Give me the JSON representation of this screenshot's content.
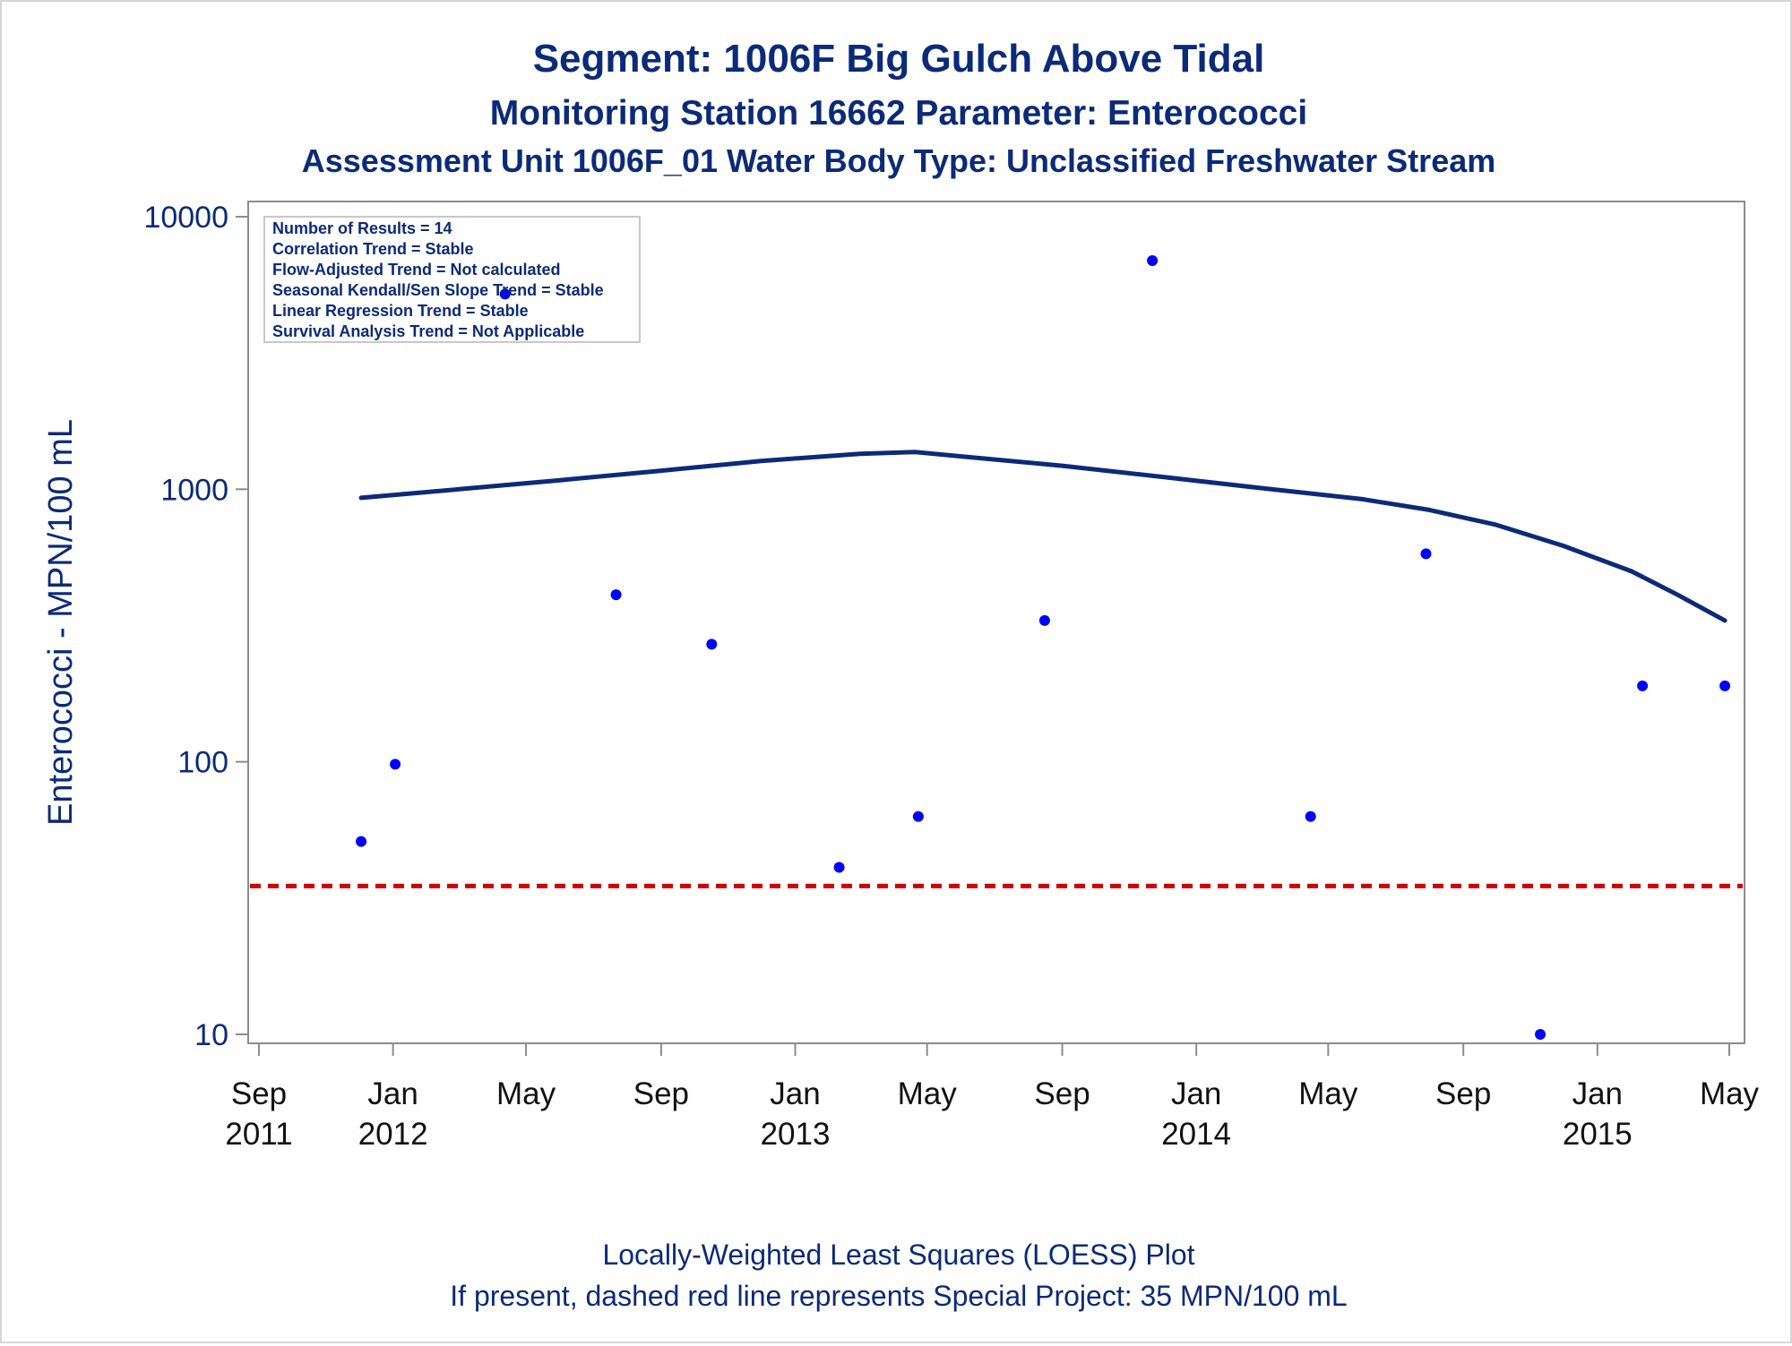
{
  "chart_data": {
    "type": "scatter",
    "title": "Segment: 1006F  Big Gulch Above Tidal",
    "subtitle": "Monitoring Station 16662 Parameter: Enterococci",
    "subtitle2": "Assessment Unit 1006F_01   Water Body Type: Unclassified Freshwater Stream",
    "ylabel": "Enterococci - MPN/100 mL",
    "y_scale": "log",
    "ylim": [
      10,
      10000
    ],
    "y_ticks": [
      {
        "value": 10,
        "label": "10"
      },
      {
        "value": 100,
        "label": "100"
      },
      {
        "value": 1000,
        "label": "1000"
      },
      {
        "value": 10000,
        "label": "10000"
      }
    ],
    "xlim": [
      "2011-09-01",
      "2015-05-01"
    ],
    "x_ticks": [
      {
        "date": "2011-09-01",
        "line1": "Sep",
        "line2": "2011"
      },
      {
        "date": "2012-01-01",
        "line1": "Jan",
        "line2": "2012"
      },
      {
        "date": "2012-05-01",
        "line1": "May",
        "line2": ""
      },
      {
        "date": "2012-09-01",
        "line1": "Sep",
        "line2": ""
      },
      {
        "date": "2013-01-01",
        "line1": "Jan",
        "line2": "2013"
      },
      {
        "date": "2013-05-01",
        "line1": "May",
        "line2": ""
      },
      {
        "date": "2013-09-01",
        "line1": "Sep",
        "line2": ""
      },
      {
        "date": "2014-01-01",
        "line1": "Jan",
        "line2": "2014"
      },
      {
        "date": "2014-05-01",
        "line1": "May",
        "line2": ""
      },
      {
        "date": "2014-09-01",
        "line1": "Sep",
        "line2": ""
      },
      {
        "date": "2015-01-01",
        "line1": "Jan",
        "line2": "2015"
      },
      {
        "date": "2015-05-01",
        "line1": "May",
        "line2": ""
      }
    ],
    "points": [
      {
        "x": "2011-12-03",
        "y": 51
      },
      {
        "x": "2012-01-03",
        "y": 98
      },
      {
        "x": "2012-04-12",
        "y": 5200
      },
      {
        "x": "2012-07-22",
        "y": 410
      },
      {
        "x": "2012-10-17",
        "y": 270
      },
      {
        "x": "2013-02-10",
        "y": 41
      },
      {
        "x": "2013-04-23",
        "y": 63
      },
      {
        "x": "2013-08-16",
        "y": 330
      },
      {
        "x": "2013-11-22",
        "y": 6900
      },
      {
        "x": "2014-04-15",
        "y": 63
      },
      {
        "x": "2014-07-29",
        "y": 580
      },
      {
        "x": "2014-11-10",
        "y": 10
      },
      {
        "x": "2015-02-11",
        "y": 190
      },
      {
        "x": "2015-04-27",
        "y": 190
      }
    ],
    "loess": [
      {
        "x": "2011-12-03",
        "y": 930
      },
      {
        "x": "2012-03-01",
        "y": 1000
      },
      {
        "x": "2012-06-01",
        "y": 1080
      },
      {
        "x": "2012-09-01",
        "y": 1170
      },
      {
        "x": "2012-12-01",
        "y": 1270
      },
      {
        "x": "2013-03-01",
        "y": 1350
      },
      {
        "x": "2013-04-20",
        "y": 1370
      },
      {
        "x": "2013-06-01",
        "y": 1320
      },
      {
        "x": "2013-09-01",
        "y": 1220
      },
      {
        "x": "2013-12-01",
        "y": 1110
      },
      {
        "x": "2014-03-01",
        "y": 1010
      },
      {
        "x": "2014-06-01",
        "y": 920
      },
      {
        "x": "2014-08-01",
        "y": 840
      },
      {
        "x": "2014-10-01",
        "y": 740
      },
      {
        "x": "2014-12-01",
        "y": 620
      },
      {
        "x": "2015-02-01",
        "y": 500
      },
      {
        "x": "2015-03-15",
        "y": 410
      },
      {
        "x": "2015-04-27",
        "y": 330
      }
    ],
    "reference_line": {
      "y": 35
    },
    "colors": {
      "points": "#0000ff",
      "loess": "#0b2a78",
      "reference": "#d00000",
      "text": "#0b2a78"
    },
    "legend_placement": "top-left",
    "grid": false
  },
  "stats_box": {
    "lines": [
      "Number of Results = 14",
      "Correlation Trend = Stable",
      "Flow-Adjusted Trend = Not calculated",
      "Seasonal Kendall/Sen Slope Trend = Stable",
      "Linear Regression Trend = Stable",
      "Survival Analysis Trend = Not Applicable"
    ]
  },
  "footer": {
    "line1": "Locally-Weighted Least Squares (LOESS) Plot",
    "line2": "If present, dashed red line represents Special Project: 35 MPN/100 mL"
  }
}
